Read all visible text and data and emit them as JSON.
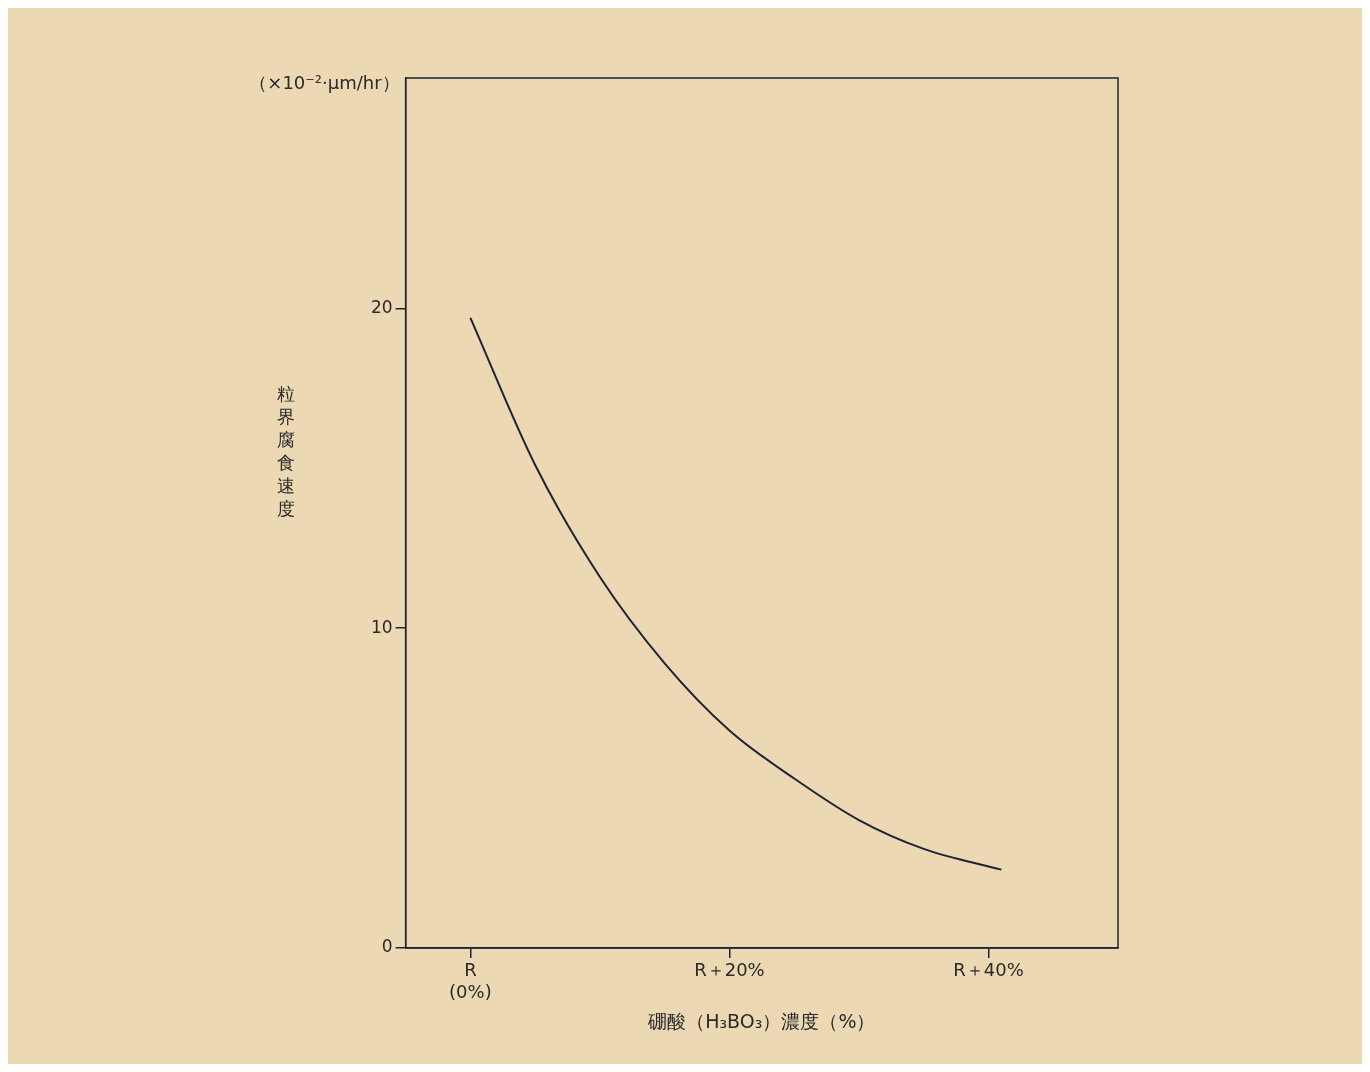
{
  "chart_data": {
    "type": "line",
    "xlabel": "硼酸（H₃BO₃）濃度（%）",
    "ylabel": "粒界腐食速度",
    "annotations": [
      "（×10⁻²·μm/hr）"
    ],
    "x": [
      0,
      5,
      10,
      15,
      20,
      25,
      30,
      35,
      41
    ],
    "series": [
      {
        "color": "#1c2438",
        "values": [
          19.7,
          15.1,
          11.6,
          8.9,
          6.8,
          5.3,
          4.0,
          3.1,
          2.45
        ]
      }
    ],
    "xlim": [
      -5,
      50
    ],
    "xticks": [
      {
        "value": 0,
        "label": "R\n(0%)"
      },
      {
        "value": 20,
        "label": "R＋20%"
      },
      {
        "value": 40,
        "label": "R＋40%"
      }
    ],
    "ylim": [
      0,
      27.2
    ],
    "yticks": [
      0,
      10,
      20
    ],
    "grid": false,
    "legend": false,
    "marker": "none",
    "line_style": "solid"
  }
}
